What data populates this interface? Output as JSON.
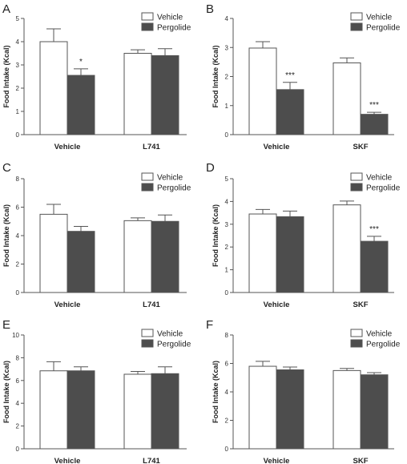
{
  "colors": {
    "vehicle_fill": "#ffffff",
    "pergolide_fill": "#4d4d4d",
    "outline": "#555555",
    "text": "#222222"
  },
  "chart_data": [
    {
      "panel": "A",
      "type": "bar",
      "ylabel": "Food Intake (Kcal)",
      "ylim": [
        0,
        5
      ],
      "yticks": [
        0,
        1,
        2,
        3,
        4,
        5
      ],
      "categories": [
        "Vehicle",
        "L741"
      ],
      "legend": "top-right",
      "series": [
        {
          "name": "Vehicle",
          "values": [
            4.0,
            3.5
          ],
          "errors": [
            0.55,
            0.15
          ],
          "significance": [
            "",
            ""
          ]
        },
        {
          "name": "Pergolide",
          "values": [
            2.55,
            3.4
          ],
          "errors": [
            0.28,
            0.3
          ],
          "significance": [
            "*",
            ""
          ]
        }
      ]
    },
    {
      "panel": "B",
      "type": "bar",
      "ylabel": "Food Intake (Kcal)",
      "ylim": [
        0,
        4
      ],
      "yticks": [
        0,
        1,
        2,
        3,
        4
      ],
      "categories": [
        "Vehicle",
        "SKF"
      ],
      "legend": "top-right",
      "series": [
        {
          "name": "Vehicle",
          "values": [
            2.98,
            2.47
          ],
          "errors": [
            0.22,
            0.17
          ],
          "significance": [
            "",
            ""
          ]
        },
        {
          "name": "Pergolide",
          "values": [
            1.55,
            0.7
          ],
          "errors": [
            0.25,
            0.07
          ],
          "significance": [
            "***",
            "***"
          ]
        }
      ]
    },
    {
      "panel": "C",
      "type": "bar",
      "ylabel": "Food Intake (Kcal)",
      "ylim": [
        0,
        8
      ],
      "yticks": [
        0,
        2,
        4,
        6,
        8
      ],
      "categories": [
        "Vehicle",
        "L741"
      ],
      "legend": "top-right",
      "series": [
        {
          "name": "Vehicle",
          "values": [
            5.5,
            5.05
          ],
          "errors": [
            0.7,
            0.2
          ],
          "significance": [
            "",
            ""
          ]
        },
        {
          "name": "Pergolide",
          "values": [
            4.3,
            5.0
          ],
          "errors": [
            0.35,
            0.45
          ],
          "significance": [
            "",
            ""
          ]
        }
      ]
    },
    {
      "panel": "D",
      "type": "bar",
      "ylabel": "Food Intake (Kcal)",
      "ylim": [
        0,
        5
      ],
      "yticks": [
        0,
        1,
        2,
        3,
        4,
        5
      ],
      "categories": [
        "Vehicle",
        "SKF"
      ],
      "legend": "top-right",
      "series": [
        {
          "name": "Vehicle",
          "values": [
            3.45,
            3.85
          ],
          "errors": [
            0.2,
            0.17
          ],
          "significance": [
            "",
            ""
          ]
        },
        {
          "name": "Pergolide",
          "values": [
            3.33,
            2.25
          ],
          "errors": [
            0.25,
            0.22
          ],
          "significance": [
            "",
            "***"
          ]
        }
      ]
    },
    {
      "panel": "E",
      "type": "bar",
      "ylabel": "Food Intake (Kcal)",
      "ylim": [
        0,
        10
      ],
      "yticks": [
        0,
        2,
        4,
        6,
        8,
        10
      ],
      "categories": [
        "Vehicle",
        "L741"
      ],
      "legend": "top-right",
      "series": [
        {
          "name": "Vehicle",
          "values": [
            6.85,
            6.55
          ],
          "errors": [
            0.8,
            0.25
          ],
          "significance": [
            "",
            ""
          ]
        },
        {
          "name": "Pergolide",
          "values": [
            6.85,
            6.6
          ],
          "errors": [
            0.35,
            0.6
          ],
          "significance": [
            "",
            ""
          ]
        }
      ]
    },
    {
      "panel": "F",
      "type": "bar",
      "ylabel": "Food Intake (Kcal)",
      "ylim": [
        0,
        8
      ],
      "yticks": [
        0,
        2,
        4,
        6,
        8
      ],
      "categories": [
        "Vehicle",
        "SKF"
      ],
      "legend": "top-right",
      "series": [
        {
          "name": "Vehicle",
          "values": [
            5.8,
            5.5
          ],
          "errors": [
            0.35,
            0.15
          ],
          "significance": [
            "",
            ""
          ]
        },
        {
          "name": "Pergolide",
          "values": [
            5.55,
            5.2
          ],
          "errors": [
            0.2,
            0.15
          ],
          "significance": [
            "",
            ""
          ]
        }
      ]
    }
  ]
}
